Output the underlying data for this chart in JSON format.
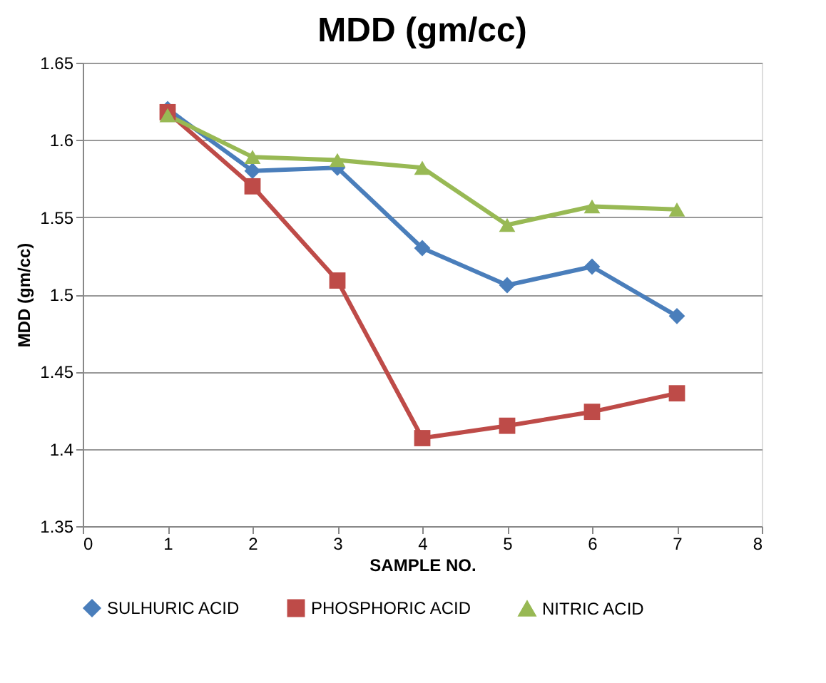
{
  "chart_data": {
    "type": "line",
    "title": "MDD (gm/cc)",
    "xlabel": "SAMPLE NO.",
    "ylabel": "MDD (gm/cc)",
    "x": [
      1,
      2,
      3,
      4,
      5,
      6,
      7
    ],
    "series": [
      {
        "name": "SULHURIC ACID",
        "color": "#4a7ebb",
        "marker": "diamond",
        "values": [
          1.62,
          1.58,
          1.582,
          1.53,
          1.506,
          1.518,
          1.486
        ]
      },
      {
        "name": "PHOSPHORIC ACID",
        "color": "#be4b48",
        "marker": "square",
        "values": [
          1.618,
          1.57,
          1.509,
          1.407,
          1.415,
          1.424,
          1.436
        ]
      },
      {
        "name": "NITRIC ACID",
        "color": "#98b954",
        "marker": "triangle",
        "values": [
          1.616,
          1.589,
          1.587,
          1.582,
          1.545,
          1.557,
          1.555
        ]
      }
    ],
    "xlim": [
      0,
      8
    ],
    "xticks": [
      0,
      1,
      2,
      3,
      4,
      5,
      6,
      7,
      8
    ],
    "ylim": [
      1.35,
      1.65
    ],
    "yticks": [
      1.35,
      1.4,
      1.45,
      1.5,
      1.55,
      1.6,
      1.65
    ],
    "grid": "y",
    "legend": "bottom",
    "line_style": "solid"
  }
}
